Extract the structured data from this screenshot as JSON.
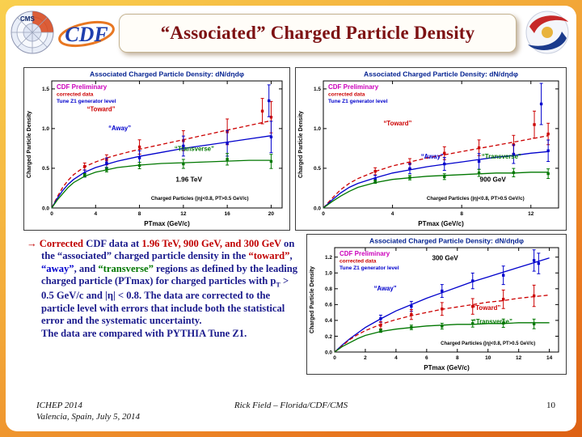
{
  "header": {
    "title": "“Associated” Charged Particle Density",
    "logos": {
      "cms": "CMS",
      "cdf": "CDF"
    }
  },
  "body": {
    "paragraphs": [
      [
        {
          "text": "→ ",
          "color": "#c00000"
        },
        {
          "text": "Corrected ",
          "color": "#c00000"
        },
        {
          "text": "CDF data at ",
          "color": "#1a1a8c"
        },
        {
          "text": "1.96 TeV, 900 GeV, and 300 GeV ",
          "color": "#c00000"
        },
        {
          "text": "on the “associated” charged particle density in the ",
          "color": "#1a1a8c"
        },
        {
          "text": "“toward”",
          "color": "#c00000"
        },
        {
          "text": ", ",
          "color": "#1a1a8c"
        },
        {
          "text": "“away”",
          "color": "#0000cd"
        },
        {
          "text": ", and ",
          "color": "#1a1a8c"
        },
        {
          "text": "“transverse”",
          "color": "#007700"
        },
        {
          "text": " regions as defined by the leading charged particle (PTmax) for charged particles with p",
          "color": "#1a1a8c"
        },
        {
          "text": "T",
          "color": "#1a1a8c",
          "sub": true
        },
        {
          "text": " > 0.5 GeV/c and |η| < 0.8.  The data are corrected to the particle level with errors that include both the statistical error and the systematic uncertainty.",
          "color": "#1a1a8c"
        }
      ],
      [
        {
          "text": "The data are compared with PYTHIA Tune Z1.",
          "color": "#1a1a8c"
        }
      ]
    ]
  },
  "footer": {
    "left_line1": "ICHEP 2014",
    "left_line2": "Valencia, Spain, July 5, 2014",
    "center": "Rick Field – Florida/CDF/CMS",
    "page": "10"
  },
  "colors": {
    "frame_gradient_top": "#f9d04f",
    "frame_gradient_bottom": "#dd6114",
    "title_text": "#7d1113",
    "toward": "#cc0000",
    "away": "#0000cc",
    "transverse": "#007700",
    "preliminary": "#cc00bb"
  },
  "chart_data": [
    {
      "type": "line",
      "energy": "1.96 TeV",
      "title": "Associated Charged Particle Density: dN/dηdφ",
      "watermark": [
        {
          "text": "CDF Preliminary",
          "color": "#cc00bb",
          "size": 8
        },
        {
          "text": "corrected data",
          "color": "#cc0000",
          "size": 6.6
        },
        {
          "text": "Tune Z1 generator level",
          "color": "#0000cc",
          "size": 6.6
        }
      ],
      "xlabel": "PTmax  (GeV/c)",
      "ylabel": "Charged Particle Density",
      "xlim": [
        0,
        21
      ],
      "ylim": [
        0,
        1.6
      ],
      "xticks": [
        0,
        4,
        8,
        12,
        16,
        20
      ],
      "yticks": [
        0,
        0.5,
        1,
        1.5
      ],
      "ytick_labels": [
        "0.0",
        "0.5",
        "1.0",
        "1.5"
      ],
      "series": [
        {
          "name": "Toward",
          "color": "#cc0000",
          "dash": "5,3",
          "x": [
            0,
            0.5,
            1,
            1.5,
            2,
            3,
            4,
            5,
            6,
            8,
            10,
            12,
            14,
            16,
            18,
            20
          ],
          "y": [
            0,
            0.14,
            0.26,
            0.35,
            0.42,
            0.52,
            0.58,
            0.63,
            0.67,
            0.74,
            0.8,
            0.86,
            0.92,
            0.98,
            1.04,
            1.1
          ]
        },
        {
          "name": "Away",
          "color": "#0000cc",
          "dash": "",
          "x": [
            0,
            0.5,
            1,
            1.5,
            2,
            3,
            4,
            5,
            6,
            8,
            10,
            12,
            14,
            16,
            18,
            20
          ],
          "y": [
            0,
            0.12,
            0.22,
            0.3,
            0.36,
            0.45,
            0.51,
            0.55,
            0.59,
            0.65,
            0.7,
            0.75,
            0.79,
            0.83,
            0.87,
            0.91
          ]
        },
        {
          "name": "Transverse",
          "color": "#007700",
          "dash": "",
          "x": [
            0,
            0.5,
            1,
            1.5,
            2,
            3,
            4,
            5,
            6,
            8,
            10,
            12,
            14,
            16,
            18,
            20
          ],
          "y": [
            0,
            0.1,
            0.18,
            0.26,
            0.32,
            0.4,
            0.45,
            0.48,
            0.51,
            0.54,
            0.56,
            0.57,
            0.58,
            0.59,
            0.6,
            0.6
          ]
        }
      ],
      "extra_points": [
        {
          "series": 0,
          "x": 19.2,
          "y": 1.22,
          "err": 0.16
        },
        {
          "series": 1,
          "x": 19.8,
          "y": 1.35,
          "err": 0.2
        }
      ],
      "annotations": [
        {
          "text": "“Toward”",
          "color": "#cc0000",
          "x": 4.5,
          "y": 1.22
        },
        {
          "text": "“Away”",
          "color": "#0000cc",
          "x": 6.2,
          "y": 0.98
        },
        {
          "text": "“Transverse”",
          "color": "#007700",
          "x": 13,
          "y": 0.72
        },
        {
          "text": "1.96 TeV",
          "color": "#000000",
          "x": 12.5,
          "y": 0.33,
          "size": 8.2
        },
        {
          "text": "Charged Particles (|η|<0.8, PT>0.5 GeV/c)",
          "color": "#000000",
          "x": 13.5,
          "y": 0.1,
          "size": 6.2
        }
      ]
    },
    {
      "type": "line",
      "energy": "900 GeV",
      "title": "Associated Charged Particle Density: dN/dηdφ",
      "watermark": [
        {
          "text": "CDF Preliminary",
          "color": "#cc00bb",
          "size": 8
        },
        {
          "text": "corrected data",
          "color": "#cc0000",
          "size": 6.6
        },
        {
          "text": "Tune Z1 generator level",
          "color": "#0000cc",
          "size": 6.6
        }
      ],
      "xlabel": "PTmax  (GeV/c)",
      "ylabel": "Charged Particle Density",
      "xlim": [
        0,
        13.6
      ],
      "ylim": [
        0,
        1.6
      ],
      "xticks": [
        0,
        4,
        8,
        12
      ],
      "yticks": [
        0,
        0.5,
        1,
        1.5
      ],
      "ytick_labels": [
        "0.0",
        "0.5",
        "1.0",
        "1.5"
      ],
      "series": [
        {
          "name": "Toward",
          "color": "#cc0000",
          "dash": "5,3",
          "x": [
            0,
            0.5,
            1,
            1.5,
            2,
            3,
            4,
            5,
            6,
            7,
            8,
            9,
            10,
            11,
            12,
            13
          ],
          "y": [
            0,
            0.12,
            0.23,
            0.31,
            0.37,
            0.46,
            0.53,
            0.58,
            0.63,
            0.67,
            0.71,
            0.75,
            0.79,
            0.83,
            0.87,
            0.91
          ]
        },
        {
          "name": "Away",
          "color": "#0000cc",
          "dash": "",
          "x": [
            0,
            0.5,
            1,
            1.5,
            2,
            3,
            4,
            5,
            6,
            7,
            8,
            9,
            10,
            11,
            12,
            13
          ],
          "y": [
            0,
            0.1,
            0.19,
            0.26,
            0.31,
            0.38,
            0.44,
            0.48,
            0.52,
            0.55,
            0.58,
            0.61,
            0.64,
            0.66,
            0.69,
            0.71
          ]
        },
        {
          "name": "Transverse",
          "color": "#007700",
          "dash": "",
          "x": [
            0,
            0.5,
            1,
            1.5,
            2,
            3,
            4,
            5,
            6,
            7,
            8,
            9,
            10,
            11,
            12,
            13
          ],
          "y": [
            0,
            0.08,
            0.15,
            0.21,
            0.26,
            0.32,
            0.36,
            0.38,
            0.4,
            0.41,
            0.42,
            0.43,
            0.44,
            0.44,
            0.45,
            0.45
          ]
        }
      ],
      "extra_points": [
        {
          "series": 1,
          "x": 12.6,
          "y": 1.31,
          "err": 0.26
        },
        {
          "series": 0,
          "x": 12.2,
          "y": 1.05,
          "err": 0.17
        }
      ],
      "annotations": [
        {
          "text": "“Toward”",
          "color": "#cc0000",
          "x": 4.3,
          "y": 1.04
        },
        {
          "text": "“Away”",
          "color": "#0000cc",
          "x": 6.3,
          "y": 0.62
        },
        {
          "text": "“Transverse”",
          "color": "#007700",
          "x": 10.3,
          "y": 0.62
        },
        {
          "text": "900 GeV",
          "color": "#000000",
          "x": 9.8,
          "y": 0.33,
          "size": 8.2
        },
        {
          "text": "Charged Particles (|η|<0.8, PT>0.5 GeV/c)",
          "color": "#000000",
          "x": 8.8,
          "y": 0.1,
          "size": 6.2
        }
      ]
    },
    {
      "type": "line",
      "energy": "300 GeV",
      "title": "Associated Charged Particle Density: dN/dηdφ",
      "watermark": [
        {
          "text": "CDF Preliminary",
          "color": "#cc00bb",
          "size": 8
        },
        {
          "text": "corrected data",
          "color": "#cc0000",
          "size": 6.6
        },
        {
          "text": "Tune Z1 generator level",
          "color": "#0000cc",
          "size": 6.6
        }
      ],
      "xlabel": "PTmax  (GeV/c)",
      "ylabel": "Charged Particle Density",
      "xlim": [
        0,
        14.6
      ],
      "ylim": [
        0,
        1.32
      ],
      "xticks": [
        0,
        2,
        4,
        6,
        8,
        10,
        12,
        14
      ],
      "yticks": [
        0,
        0.2,
        0.4,
        0.6,
        0.8,
        1,
        1.2
      ],
      "ytick_labels": [
        "0.0",
        "0.2",
        "0.4",
        "0.6",
        "0.8",
        "1.0",
        "1.2"
      ],
      "series": [
        {
          "name": "Away",
          "color": "#0000cc",
          "dash": "",
          "x": [
            0,
            0.5,
            1,
            1.5,
            2,
            3,
            4,
            5,
            6,
            7,
            8,
            9,
            10,
            11,
            12,
            13,
            14
          ],
          "y": [
            0,
            0.09,
            0.17,
            0.24,
            0.31,
            0.42,
            0.52,
            0.6,
            0.68,
            0.75,
            0.82,
            0.89,
            0.95,
            1.01,
            1.07,
            1.13,
            1.19
          ]
        },
        {
          "name": "Toward",
          "color": "#cc0000",
          "dash": "5,3",
          "x": [
            0,
            0.5,
            1,
            1.5,
            2,
            3,
            4,
            5,
            6,
            7,
            8,
            9,
            10,
            11,
            12,
            13,
            14
          ],
          "y": [
            0,
            0.08,
            0.16,
            0.22,
            0.27,
            0.35,
            0.41,
            0.46,
            0.5,
            0.54,
            0.57,
            0.6,
            0.63,
            0.65,
            0.68,
            0.7,
            0.72
          ]
        },
        {
          "name": "Transverse",
          "color": "#007700",
          "dash": "",
          "x": [
            0,
            0.5,
            1,
            1.5,
            2,
            3,
            4,
            5,
            6,
            7,
            8,
            9,
            10,
            11,
            12,
            13,
            14
          ],
          "y": [
            0,
            0.07,
            0.12,
            0.17,
            0.21,
            0.26,
            0.29,
            0.31,
            0.33,
            0.34,
            0.35,
            0.35,
            0.36,
            0.36,
            0.37,
            0.37,
            0.37
          ]
        }
      ],
      "extra_points": [
        {
          "series": 0,
          "x": 13.3,
          "y": 1.12,
          "err": 0.13
        }
      ],
      "annotations": [
        {
          "text": "“Away”",
          "color": "#0000cc",
          "x": 3.3,
          "y": 0.78
        },
        {
          "text": "“Toward”",
          "color": "#cc0000",
          "x": 9.9,
          "y": 0.53
        },
        {
          "text": "“Transverse”",
          "color": "#007700",
          "x": 10.3,
          "y": 0.36
        },
        {
          "text": "300 GeV",
          "color": "#000000",
          "x": 7.2,
          "y": 1.16,
          "size": 8.2
        },
        {
          "text": "Charged Particles (|η|<0.8, PT>0.5 GeV/c)",
          "color": "#000000",
          "x": 10,
          "y": 0.09,
          "size": 6
        }
      ]
    }
  ]
}
